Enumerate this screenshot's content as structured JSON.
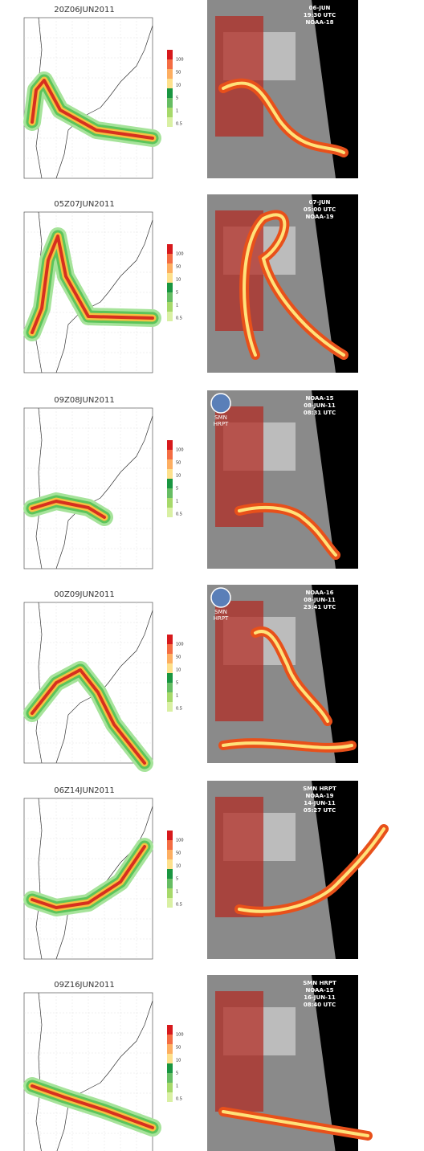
{
  "colorbar": {
    "labels": [
      "100",
      "50",
      "10",
      "5",
      "1",
      "0.5"
    ]
  },
  "panels": [
    {
      "title": "20Z06JUN2011",
      "satellite_text": [
        "06-JUN",
        "19:30 UTC",
        "NOAA-18"
      ]
    },
    {
      "title": "05Z07JUN2011",
      "satellite_text": [
        "07-JUN",
        "05:00 UTC",
        "NOAA-19"
      ]
    },
    {
      "title": "09Z08JUN2011",
      "satellite_text": [
        "NOAA-15",
        "08-JUN-11",
        "08:31 UTC"
      ],
      "logo_text": [
        "SMN",
        "HRPT"
      ]
    },
    {
      "title": "00Z09JUN2011",
      "satellite_text": [
        "NOAA-16",
        "08-JUN-11",
        "23:41 UTC"
      ],
      "logo_text": [
        "SMN",
        "HRPT"
      ]
    },
    {
      "title": "06Z14JUN2011",
      "satellite_text": [
        "SMN HRPT",
        "NOAA-19",
        "14-JUN-11",
        "05:27 UTC"
      ]
    },
    {
      "title": "09Z16JUN2011",
      "satellite_text": [
        "SMN HRPT",
        "NOAA-15",
        "16-JUN-11",
        "08:40 UTC"
      ]
    }
  ]
}
